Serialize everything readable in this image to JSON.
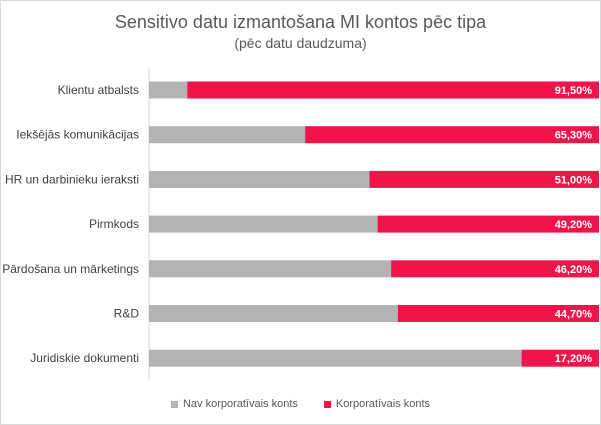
{
  "chart_data": {
    "type": "bar",
    "orientation": "horizontal",
    "stacked": "100%",
    "title": "Sensitivo datu izmantošana MI kontos pēc tipa",
    "subtitle": "(pēc datu daudzuma)",
    "categories": [
      "Klientu atbalsts",
      "Iekšējās komunikācijas",
      "HR un darbinieku ieraksti",
      "Pirmkods",
      "Pārdošana un mārketings",
      "R&D",
      "Juridiskie dokumenti"
    ],
    "series": [
      {
        "name": "Nav korporatīvais konts",
        "color": "#b3b3b3",
        "values": [
          8.5,
          34.7,
          49.0,
          50.8,
          53.8,
          55.3,
          82.8
        ]
      },
      {
        "name": "Korporatīvais konts",
        "color": "#f0144b",
        "values": [
          91.5,
          65.3,
          51.0,
          49.2,
          46.2,
          44.7,
          17.2
        ],
        "data_labels": [
          "91,50%",
          "65,30%",
          "51,00%",
          "49,20%",
          "46,20%",
          "44,70%",
          "17,20%"
        ]
      }
    ],
    "xlim": [
      0,
      100
    ],
    "grid": false,
    "legend_position": "bottom"
  }
}
